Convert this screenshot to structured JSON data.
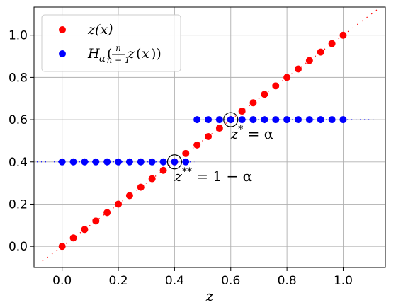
{
  "chart_data": {
    "type": "scatter",
    "xlabel": "z",
    "ylabel": "",
    "xlim": [
      -0.1,
      1.15
    ],
    "ylim": [
      -0.1,
      1.133
    ],
    "grid": true,
    "legend_position": "top-left",
    "xticks": [
      "0.0",
      "0.2",
      "0.4",
      "0.6",
      "0.8",
      "1.0"
    ],
    "xtick_values": [
      0.0,
      0.2,
      0.4,
      0.6,
      0.8,
      1.0
    ],
    "yticks": [
      "0.0",
      "0.2",
      "0.4",
      "0.6",
      "0.8",
      "1.0"
    ],
    "ytick_values": [
      0.0,
      0.2,
      0.4,
      0.6,
      0.8,
      1.0
    ],
    "series": [
      {
        "name": "z(x)",
        "color": "#ff0000",
        "x": [
          0.0,
          0.04,
          0.08,
          0.12,
          0.16,
          0.2,
          0.24,
          0.28,
          0.32,
          0.36,
          0.4,
          0.44,
          0.48,
          0.52,
          0.56,
          0.6,
          0.64,
          0.68,
          0.72,
          0.76,
          0.8,
          0.84,
          0.88,
          0.92,
          0.96,
          1.0
        ],
        "y": [
          0.0,
          0.04,
          0.08,
          0.12,
          0.16,
          0.2,
          0.24,
          0.28,
          0.32,
          0.36,
          0.4,
          0.44,
          0.48,
          0.52,
          0.56,
          0.6,
          0.64,
          0.68,
          0.72,
          0.76,
          0.8,
          0.84,
          0.88,
          0.92,
          0.96,
          1.0
        ]
      },
      {
        "name": "H_α(n/(n−1) z(x))",
        "color": "#0000ff",
        "x": [
          0.0,
          0.04,
          0.08,
          0.12,
          0.16,
          0.2,
          0.24,
          0.28,
          0.32,
          0.36,
          0.4,
          0.44,
          0.48,
          0.52,
          0.56,
          0.6,
          0.64,
          0.68,
          0.72,
          0.76,
          0.8,
          0.84,
          0.88,
          0.92,
          0.96,
          1.0
        ],
        "y": [
          0.4,
          0.4,
          0.4,
          0.4,
          0.4,
          0.4,
          0.4,
          0.4,
          0.4,
          0.4,
          0.4,
          0.4,
          0.6,
          0.6,
          0.6,
          0.6,
          0.6,
          0.6,
          0.6,
          0.6,
          0.6,
          0.6,
          0.6,
          0.6,
          0.6,
          0.6
        ]
      }
    ],
    "reference_lines": [
      {
        "style": "red dotted",
        "x": [
          -0.07,
          1.12
        ],
        "y": [
          -0.07,
          1.12
        ]
      },
      {
        "style": "blue dotted",
        "x": [
          -0.09,
          0.47
        ],
        "y": [
          0.4,
          0.4
        ]
      },
      {
        "style": "blue dotted",
        "x": [
          0.47,
          1.12
        ],
        "y": [
          0.6,
          0.6
        ]
      }
    ],
    "annotations": [
      {
        "label_base": "z",
        "label_sup": "*",
        "label_rest": " = α",
        "point": [
          0.6,
          0.6
        ]
      },
      {
        "label_base": "z",
        "label_sup": "**",
        "label_rest": " = 1 − α",
        "point": [
          0.4,
          0.4
        ]
      }
    ]
  }
}
